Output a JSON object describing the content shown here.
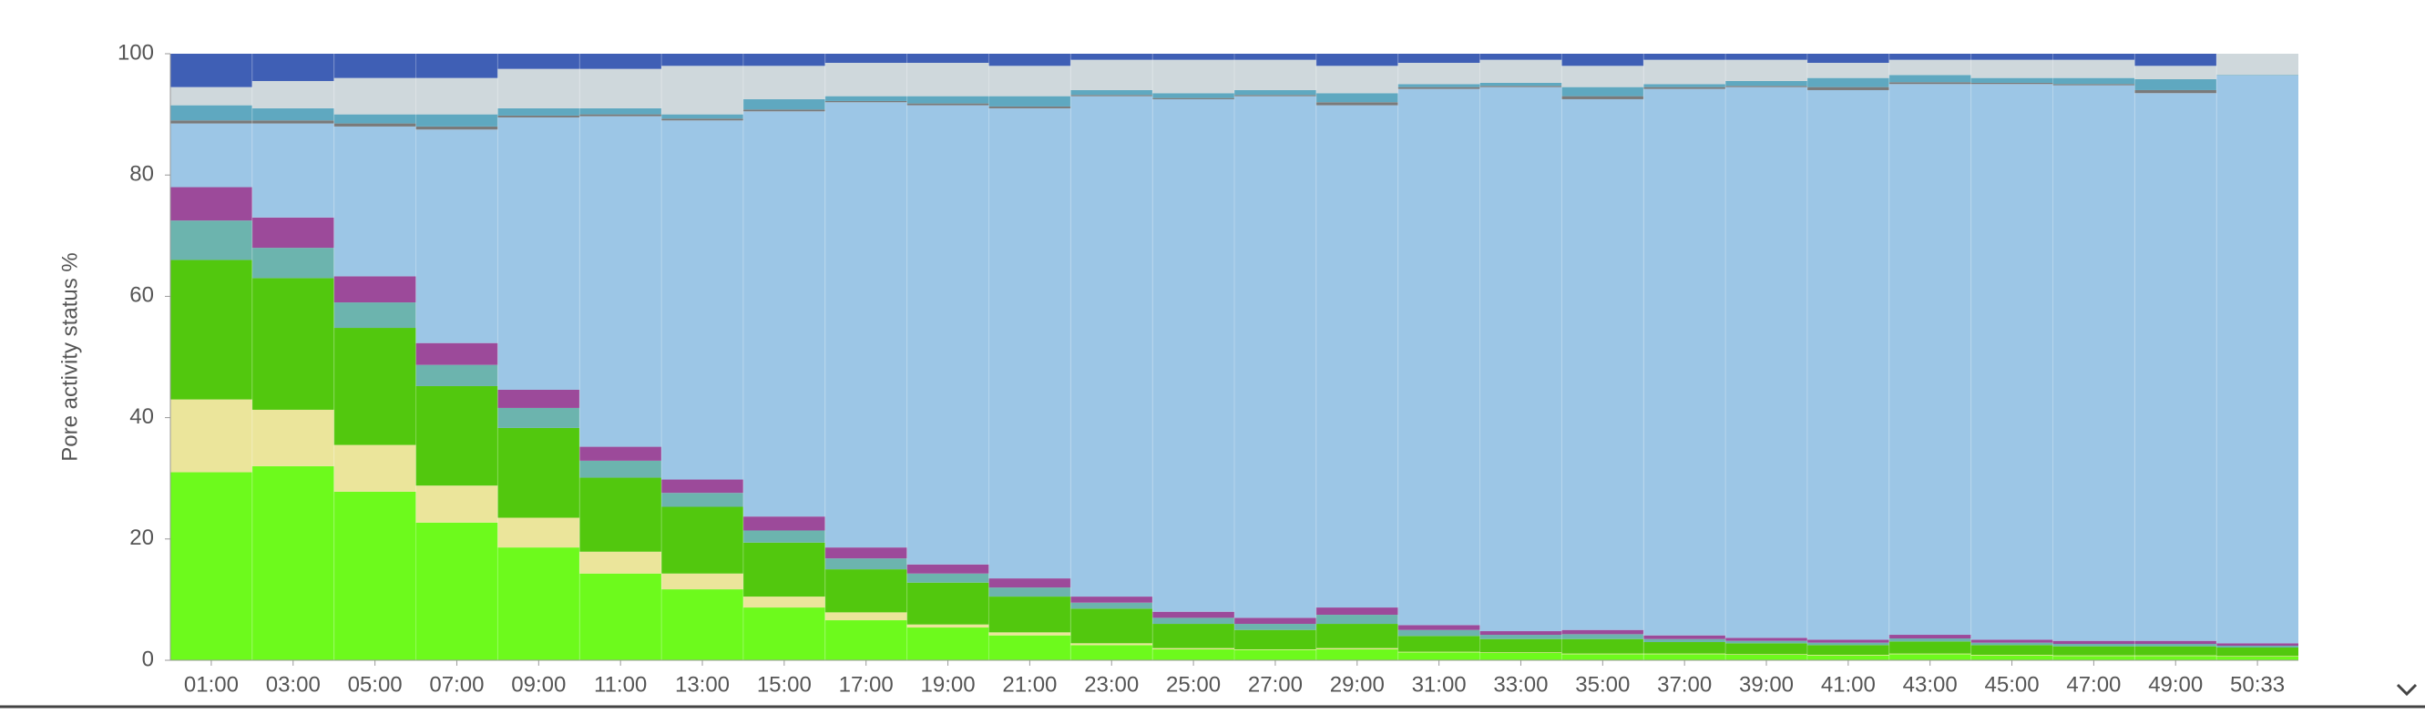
{
  "chart_data": {
    "type": "stacked-bar",
    "y_label": "Pore activity status %",
    "categories": [
      "01:00",
      "03:00",
      "05:00",
      "07:00",
      "09:00",
      "11:00",
      "13:00",
      "15:00",
      "17:00",
      "19:00",
      "21:00",
      "23:00",
      "25:00",
      "27:00",
      "29:00",
      "31:00",
      "33:00",
      "35:00",
      "37:00",
      "39:00",
      "41:00",
      "43:00",
      "45:00",
      "47:00",
      "49:00",
      "50:33"
    ],
    "ylim": [
      0,
      100
    ],
    "yticks": [
      0,
      20,
      40,
      60,
      80,
      100
    ],
    "series": [
      {
        "color": "#6dfa1c",
        "values": [
          31,
          32,
          27.8,
          22.7,
          18.6,
          14.3,
          11.7,
          8.7,
          6.6,
          5.4,
          4.1,
          2.5,
          1.8,
          1.7,
          1.8,
          1.3,
          1.2,
          1,
          1,
          0.9,
          0.8,
          1,
          0.8,
          0.7,
          0.7,
          0.6
        ]
      },
      {
        "color": "#ebe59b",
        "values": [
          12,
          9.3,
          7.7,
          6.1,
          4.9,
          3.6,
          2.6,
          1.8,
          1.3,
          0.5,
          0.5,
          0.3,
          0.2,
          0.1,
          0.2,
          0.1,
          0.1,
          0.1,
          0.1,
          0.1,
          0.1,
          0.1,
          0.1,
          0.1,
          0.1,
          0.1
        ]
      },
      {
        "color": "#52c80e",
        "values": [
          23,
          21.7,
          19.3,
          16.4,
          14.8,
          12.2,
          11,
          8.9,
          7.1,
          6.9,
          5.9,
          5.7,
          4,
          3.2,
          4,
          2.6,
          2.2,
          2.4,
          1.9,
          1.8,
          1.6,
          2,
          1.6,
          1.5,
          1.5,
          1.4
        ]
      },
      {
        "color": "#6cb4ae",
        "values": [
          6.5,
          5,
          4.2,
          3.5,
          3.3,
          2.8,
          2.3,
          2,
          1.8,
          1.5,
          1.5,
          1,
          1,
          1,
          1.5,
          1,
          0.7,
          0.8,
          0.5,
          0.4,
          0.4,
          0.5,
          0.4,
          0.4,
          0.4,
          0.3
        ]
      },
      {
        "color": "#9c4a9a",
        "values": [
          5.5,
          5,
          4.3,
          3.6,
          3,
          2.3,
          2.2,
          2.3,
          1.8,
          1.5,
          1.5,
          1,
          1,
          1,
          1.2,
          0.8,
          0.6,
          0.7,
          0.6,
          0.5,
          0.5,
          0.6,
          0.5,
          0.5,
          0.5,
          0.4
        ]
      },
      {
        "color": "#9cc6e6",
        "values": [
          10.5,
          15.5,
          24.7,
          35.2,
          44.9,
          54.5,
          59.2,
          66.8,
          73.4,
          75.7,
          77.5,
          82.5,
          84.5,
          86,
          82.8,
          88.4,
          89.7,
          87.5,
          90.1,
          90.8,
          90.6,
          90.8,
          91.6,
          91.6,
          90.3,
          93.6
        ]
      },
      {
        "color": "#7a7a7a",
        "values": [
          0.5,
          0.5,
          0.5,
          0.5,
          0.3,
          0.3,
          0.3,
          0.3,
          0.2,
          0.3,
          0.3,
          0.2,
          0.2,
          0.2,
          0.5,
          0.3,
          0.2,
          0.5,
          0.3,
          0.2,
          0.5,
          0.3,
          0.2,
          0.2,
          0.5,
          0
        ]
      },
      {
        "color": "#5fa8c0",
        "values": [
          2.5,
          2,
          1.5,
          2,
          1.2,
          1,
          0.7,
          1.7,
          0.8,
          1.2,
          1.7,
          0.8,
          0.8,
          0.8,
          1.5,
          0.5,
          0.5,
          1.5,
          0.5,
          0.8,
          1.5,
          1.2,
          0.8,
          1,
          1.8,
          0.1
        ]
      },
      {
        "color": "#cfd8dc",
        "values": [
          3,
          4.5,
          6,
          6,
          6.5,
          6.5,
          8,
          5.5,
          5.5,
          5.5,
          5,
          5,
          5.5,
          5,
          4.5,
          3.5,
          3.8,
          3.5,
          4,
          3.5,
          2.5,
          2.5,
          3,
          3,
          2.2,
          3.5
        ]
      },
      {
        "color": "#3f5fb5",
        "values": [
          5.5,
          4.5,
          4,
          4,
          2.5,
          2.5,
          2,
          2,
          1.5,
          1.5,
          2,
          1,
          1,
          1,
          2,
          1.5,
          1,
          2,
          1,
          1,
          1.5,
          1,
          1,
          1,
          2,
          0
        ]
      }
    ]
  }
}
